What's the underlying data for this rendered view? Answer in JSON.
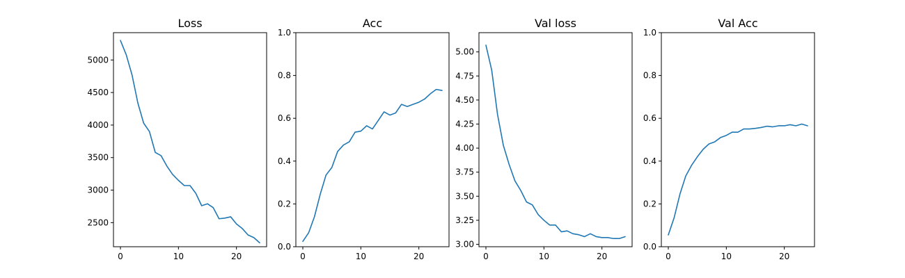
{
  "chart_data": [
    {
      "type": "line",
      "title": "Loss",
      "xlabel": "",
      "ylabel": "",
      "xlim": [
        -1.2,
        25.2
      ],
      "ylim": [
        2130,
        5420
      ],
      "xticks": [
        0,
        10,
        20
      ],
      "yticks": [
        2500,
        3000,
        3500,
        4000,
        4500,
        5000
      ],
      "ytick_labels": [
        "2500",
        "3000",
        "3500",
        "4000",
        "4500",
        "5000"
      ],
      "grid": false,
      "legend": "none",
      "series": [
        {
          "color": "#1f77b4",
          "x": [
            0,
            1,
            2,
            3,
            4,
            5,
            6,
            7,
            8,
            9,
            10,
            11,
            12,
            13,
            14,
            15,
            16,
            17,
            18,
            19,
            20,
            21,
            22,
            23,
            24
          ],
          "y": [
            5300,
            5080,
            4770,
            4340,
            4030,
            3900,
            3580,
            3530,
            3370,
            3240,
            3150,
            3070,
            3070,
            2950,
            2760,
            2790,
            2730,
            2560,
            2570,
            2590,
            2480,
            2410,
            2310,
            2270,
            2190
          ]
        }
      ]
    },
    {
      "type": "line",
      "title": "Acc",
      "xlabel": "",
      "ylabel": "",
      "xlim": [
        -1.2,
        25.2
      ],
      "ylim": [
        0.0,
        1.0
      ],
      "xticks": [
        0,
        10,
        20
      ],
      "yticks": [
        0.0,
        0.2,
        0.4,
        0.6,
        0.8,
        1.0
      ],
      "ytick_labels": [
        "0.0",
        "0.2",
        "0.4",
        "0.6",
        "0.8",
        "1.0"
      ],
      "grid": false,
      "legend": "none",
      "series": [
        {
          "color": "#1f77b4",
          "x": [
            0,
            1,
            2,
            3,
            4,
            5,
            6,
            7,
            8,
            9,
            10,
            11,
            12,
            13,
            14,
            15,
            16,
            17,
            18,
            19,
            20,
            21,
            22,
            23,
            24
          ],
          "y": [
            0.025,
            0.065,
            0.14,
            0.245,
            0.335,
            0.37,
            0.445,
            0.475,
            0.49,
            0.535,
            0.54,
            0.565,
            0.55,
            0.59,
            0.63,
            0.615,
            0.625,
            0.665,
            0.655,
            0.665,
            0.675,
            0.69,
            0.715,
            0.735,
            0.73
          ]
        }
      ]
    },
    {
      "type": "line",
      "title": "Val loss",
      "xlabel": "",
      "ylabel": "",
      "xlim": [
        -1.2,
        25.2
      ],
      "ylim": [
        2.975,
        5.2
      ],
      "xticks": [
        0,
        10,
        20
      ],
      "yticks": [
        3.0,
        3.25,
        3.5,
        3.75,
        4.0,
        4.25,
        4.5,
        4.75,
        5.0
      ],
      "ytick_labels": [
        "3.00",
        "3.25",
        "3.50",
        "3.75",
        "4.00",
        "4.25",
        "4.50",
        "4.75",
        "5.00"
      ],
      "grid": false,
      "legend": "none",
      "series": [
        {
          "color": "#1f77b4",
          "x": [
            0,
            1,
            2,
            3,
            4,
            5,
            6,
            7,
            8,
            9,
            10,
            11,
            12,
            13,
            14,
            15,
            16,
            17,
            18,
            19,
            20,
            21,
            22,
            23,
            24
          ],
          "y": [
            5.07,
            4.81,
            4.35,
            4.03,
            3.83,
            3.66,
            3.56,
            3.44,
            3.41,
            3.31,
            3.25,
            3.2,
            3.2,
            3.13,
            3.14,
            3.11,
            3.1,
            3.08,
            3.11,
            3.08,
            3.07,
            3.07,
            3.06,
            3.06,
            3.08
          ]
        }
      ]
    },
    {
      "type": "line",
      "title": "Val Acc",
      "xlabel": "",
      "ylabel": "",
      "xlim": [
        -1.2,
        25.2
      ],
      "ylim": [
        0.0,
        1.0
      ],
      "xticks": [
        0,
        10,
        20
      ],
      "yticks": [
        0.0,
        0.2,
        0.4,
        0.6,
        0.8,
        1.0
      ],
      "ytick_labels": [
        "0.0",
        "0.2",
        "0.4",
        "0.6",
        "0.8",
        "1.0"
      ],
      "grid": false,
      "legend": "none",
      "series": [
        {
          "color": "#1f77b4",
          "x": [
            0,
            1,
            2,
            3,
            4,
            5,
            6,
            7,
            8,
            9,
            10,
            11,
            12,
            13,
            14,
            15,
            16,
            17,
            18,
            19,
            20,
            21,
            22,
            23,
            24
          ],
          "y": [
            0.055,
            0.135,
            0.245,
            0.33,
            0.38,
            0.42,
            0.455,
            0.48,
            0.49,
            0.51,
            0.52,
            0.535,
            0.535,
            0.55,
            0.55,
            0.553,
            0.557,
            0.563,
            0.56,
            0.565,
            0.565,
            0.57,
            0.565,
            0.573,
            0.565
          ]
        }
      ]
    }
  ]
}
